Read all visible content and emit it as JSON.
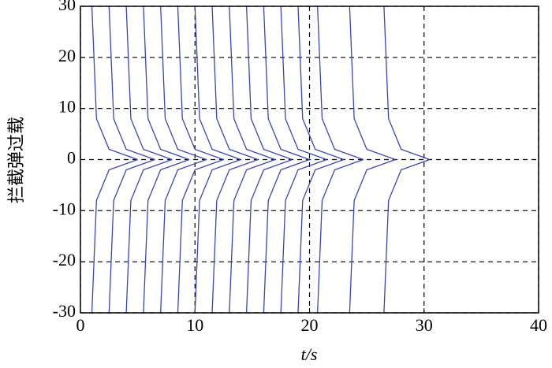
{
  "chart_data": {
    "type": "line",
    "xlabel": "t/s",
    "ylabel": "拦截弹过载",
    "color": "#3a46b4",
    "xlim": [
      0,
      40
    ],
    "xticks": [
      0,
      10,
      20,
      30,
      40
    ],
    "ylim": [
      -30,
      30
    ],
    "yticks": [
      -30,
      -20,
      -10,
      0,
      10,
      20,
      30
    ],
    "grid": true,
    "series": [
      {
        "x": [
          1,
          1.4,
          2.5,
          5
        ],
        "values": [
          30,
          8,
          2,
          0
        ]
      },
      {
        "x": [
          2.5,
          2.9,
          4,
          6.5
        ],
        "values": [
          30,
          8,
          2,
          0
        ]
      },
      {
        "x": [
          4,
          4.4,
          5.5,
          8
        ],
        "values": [
          30,
          8,
          2,
          0
        ]
      },
      {
        "x": [
          5.5,
          5.9,
          7,
          9.5
        ],
        "values": [
          30,
          8,
          2,
          0
        ]
      },
      {
        "x": [
          7,
          7.4,
          8.5,
          11
        ],
        "values": [
          30,
          8,
          2,
          0
        ]
      },
      {
        "x": [
          8.5,
          8.9,
          10,
          12.5
        ],
        "values": [
          30,
          8,
          2,
          0
        ]
      },
      {
        "x": [
          10,
          10.4,
          11.5,
          14
        ],
        "values": [
          30,
          8,
          2,
          0
        ]
      },
      {
        "x": [
          11.5,
          11.9,
          13,
          15.5
        ],
        "values": [
          30,
          8,
          2,
          0
        ]
      },
      {
        "x": [
          13,
          13.4,
          14.5,
          17
        ],
        "values": [
          30,
          8,
          2,
          0
        ]
      },
      {
        "x": [
          14.5,
          14.9,
          16,
          18.5
        ],
        "values": [
          30,
          8,
          2,
          0
        ]
      },
      {
        "x": [
          16,
          16.4,
          17.5,
          20
        ],
        "values": [
          30,
          8,
          2,
          0
        ]
      },
      {
        "x": [
          17.5,
          17.9,
          19,
          21.5
        ],
        "values": [
          30,
          8,
          2,
          0
        ]
      },
      {
        "x": [
          19,
          19.4,
          20.5,
          23
        ],
        "values": [
          30,
          8,
          2,
          0
        ]
      },
      {
        "x": [
          20.7,
          21.1,
          22.2,
          24.7
        ],
        "values": [
          30,
          8,
          2,
          0
        ]
      },
      {
        "x": [
          23.5,
          23.9,
          25,
          27.5
        ],
        "values": [
          30,
          8,
          2,
          0
        ]
      },
      {
        "x": [
          26.5,
          26.9,
          28,
          30.5
        ],
        "values": [
          30,
          8,
          2,
          0
        ]
      },
      {
        "x": [
          1,
          1.4,
          2.5,
          5
        ],
        "values": [
          -30,
          -8,
          -2,
          0
        ]
      },
      {
        "x": [
          2.5,
          2.9,
          4,
          6.5
        ],
        "values": [
          -30,
          -8,
          -2,
          0
        ]
      },
      {
        "x": [
          4,
          4.4,
          5.5,
          8
        ],
        "values": [
          -30,
          -8,
          -2,
          0
        ]
      },
      {
        "x": [
          5.5,
          5.9,
          7,
          9.5
        ],
        "values": [
          -30,
          -8,
          -2,
          0
        ]
      },
      {
        "x": [
          7,
          7.4,
          8.5,
          11
        ],
        "values": [
          -30,
          -8,
          -2,
          0
        ]
      },
      {
        "x": [
          8.5,
          8.9,
          10,
          12.5
        ],
        "values": [
          -30,
          -8,
          -2,
          0
        ]
      },
      {
        "x": [
          10,
          10.4,
          11.5,
          14
        ],
        "values": [
          -30,
          -8,
          -2,
          0
        ]
      },
      {
        "x": [
          11.5,
          11.9,
          13,
          15.5
        ],
        "values": [
          -30,
          -8,
          -2,
          0
        ]
      },
      {
        "x": [
          13,
          13.4,
          14.5,
          17
        ],
        "values": [
          -30,
          -8,
          -2,
          0
        ]
      },
      {
        "x": [
          14.5,
          14.9,
          16,
          18.5
        ],
        "values": [
          -30,
          -8,
          -2,
          0
        ]
      },
      {
        "x": [
          16,
          16.4,
          17.5,
          20
        ],
        "values": [
          -30,
          -8,
          -2,
          0
        ]
      },
      {
        "x": [
          17.5,
          17.9,
          19,
          21.5
        ],
        "values": [
          -30,
          -8,
          -2,
          0
        ]
      },
      {
        "x": [
          19,
          19.4,
          20.5,
          23
        ],
        "values": [
          -30,
          -8,
          -2,
          0
        ]
      },
      {
        "x": [
          20.7,
          21.1,
          22.2,
          24.7
        ],
        "values": [
          -30,
          -8,
          -2,
          0
        ]
      },
      {
        "x": [
          23.5,
          23.9,
          25,
          27.5
        ],
        "values": [
          -30,
          -8,
          -2,
          0
        ]
      },
      {
        "x": [
          26.5,
          26.9,
          28,
          30.5
        ],
        "values": [
          -30,
          -8,
          -2,
          0
        ]
      }
    ]
  }
}
